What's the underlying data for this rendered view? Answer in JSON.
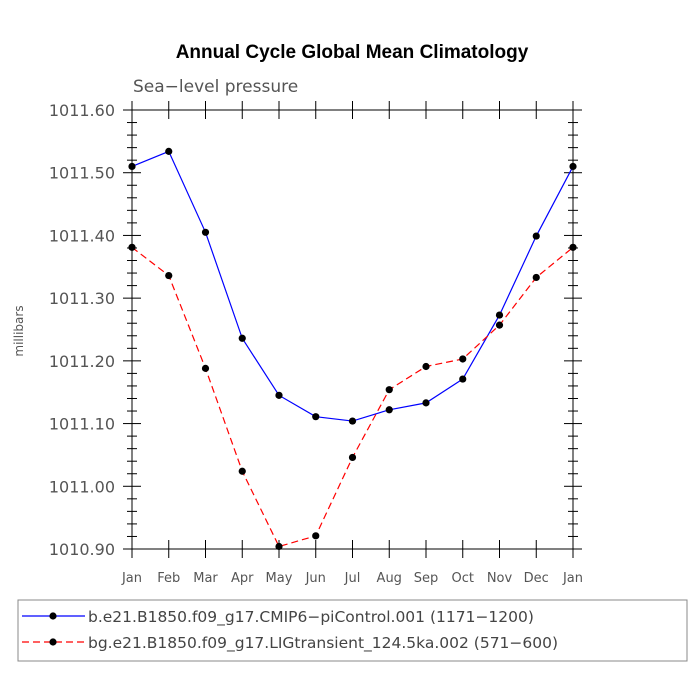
{
  "chart_data": {
    "type": "line",
    "title": "Annual Cycle Global Mean Climatology",
    "subtitle": "Sea−level pressure",
    "xlabel": "",
    "ylabel": "millibars",
    "categories": [
      "Jan",
      "Feb",
      "Mar",
      "Apr",
      "May",
      "Jun",
      "Jul",
      "Aug",
      "Sep",
      "Oct",
      "Nov",
      "Dec",
      "Jan"
    ],
    "ylim": [
      1010.9,
      1011.6
    ],
    "yticks": [
      1010.9,
      1011.0,
      1011.1,
      1011.2,
      1011.3,
      1011.4,
      1011.5,
      1011.6
    ],
    "ytick_labels": [
      "1010.90",
      "1011.00",
      "1011.10",
      "1011.20",
      "1011.30",
      "1011.40",
      "1011.50",
      "1011.60"
    ],
    "grid": false,
    "legend_position": "bottom",
    "series": [
      {
        "name": "b.e21.B1850.f09_g17.CMIP6−piControl.001 (1171−1200)",
        "color": "#0000ff",
        "dash": "solid",
        "values": [
          1011.51,
          1011.534,
          1011.405,
          1011.236,
          1011.145,
          1011.111,
          1011.104,
          1011.122,
          1011.133,
          1011.171,
          1011.273,
          1011.399,
          1011.51
        ]
      },
      {
        "name": "bg.e21.B1850.f09_g17.LIGtransient_124.5ka.002 (571−600)",
        "color": "#ff0000",
        "dash": "dashed",
        "values": [
          1011.381,
          1011.336,
          1011.188,
          1011.024,
          1010.904,
          1010.921,
          1011.046,
          1011.154,
          1011.191,
          1011.203,
          1011.257,
          1011.333,
          1011.381
        ]
      }
    ]
  }
}
